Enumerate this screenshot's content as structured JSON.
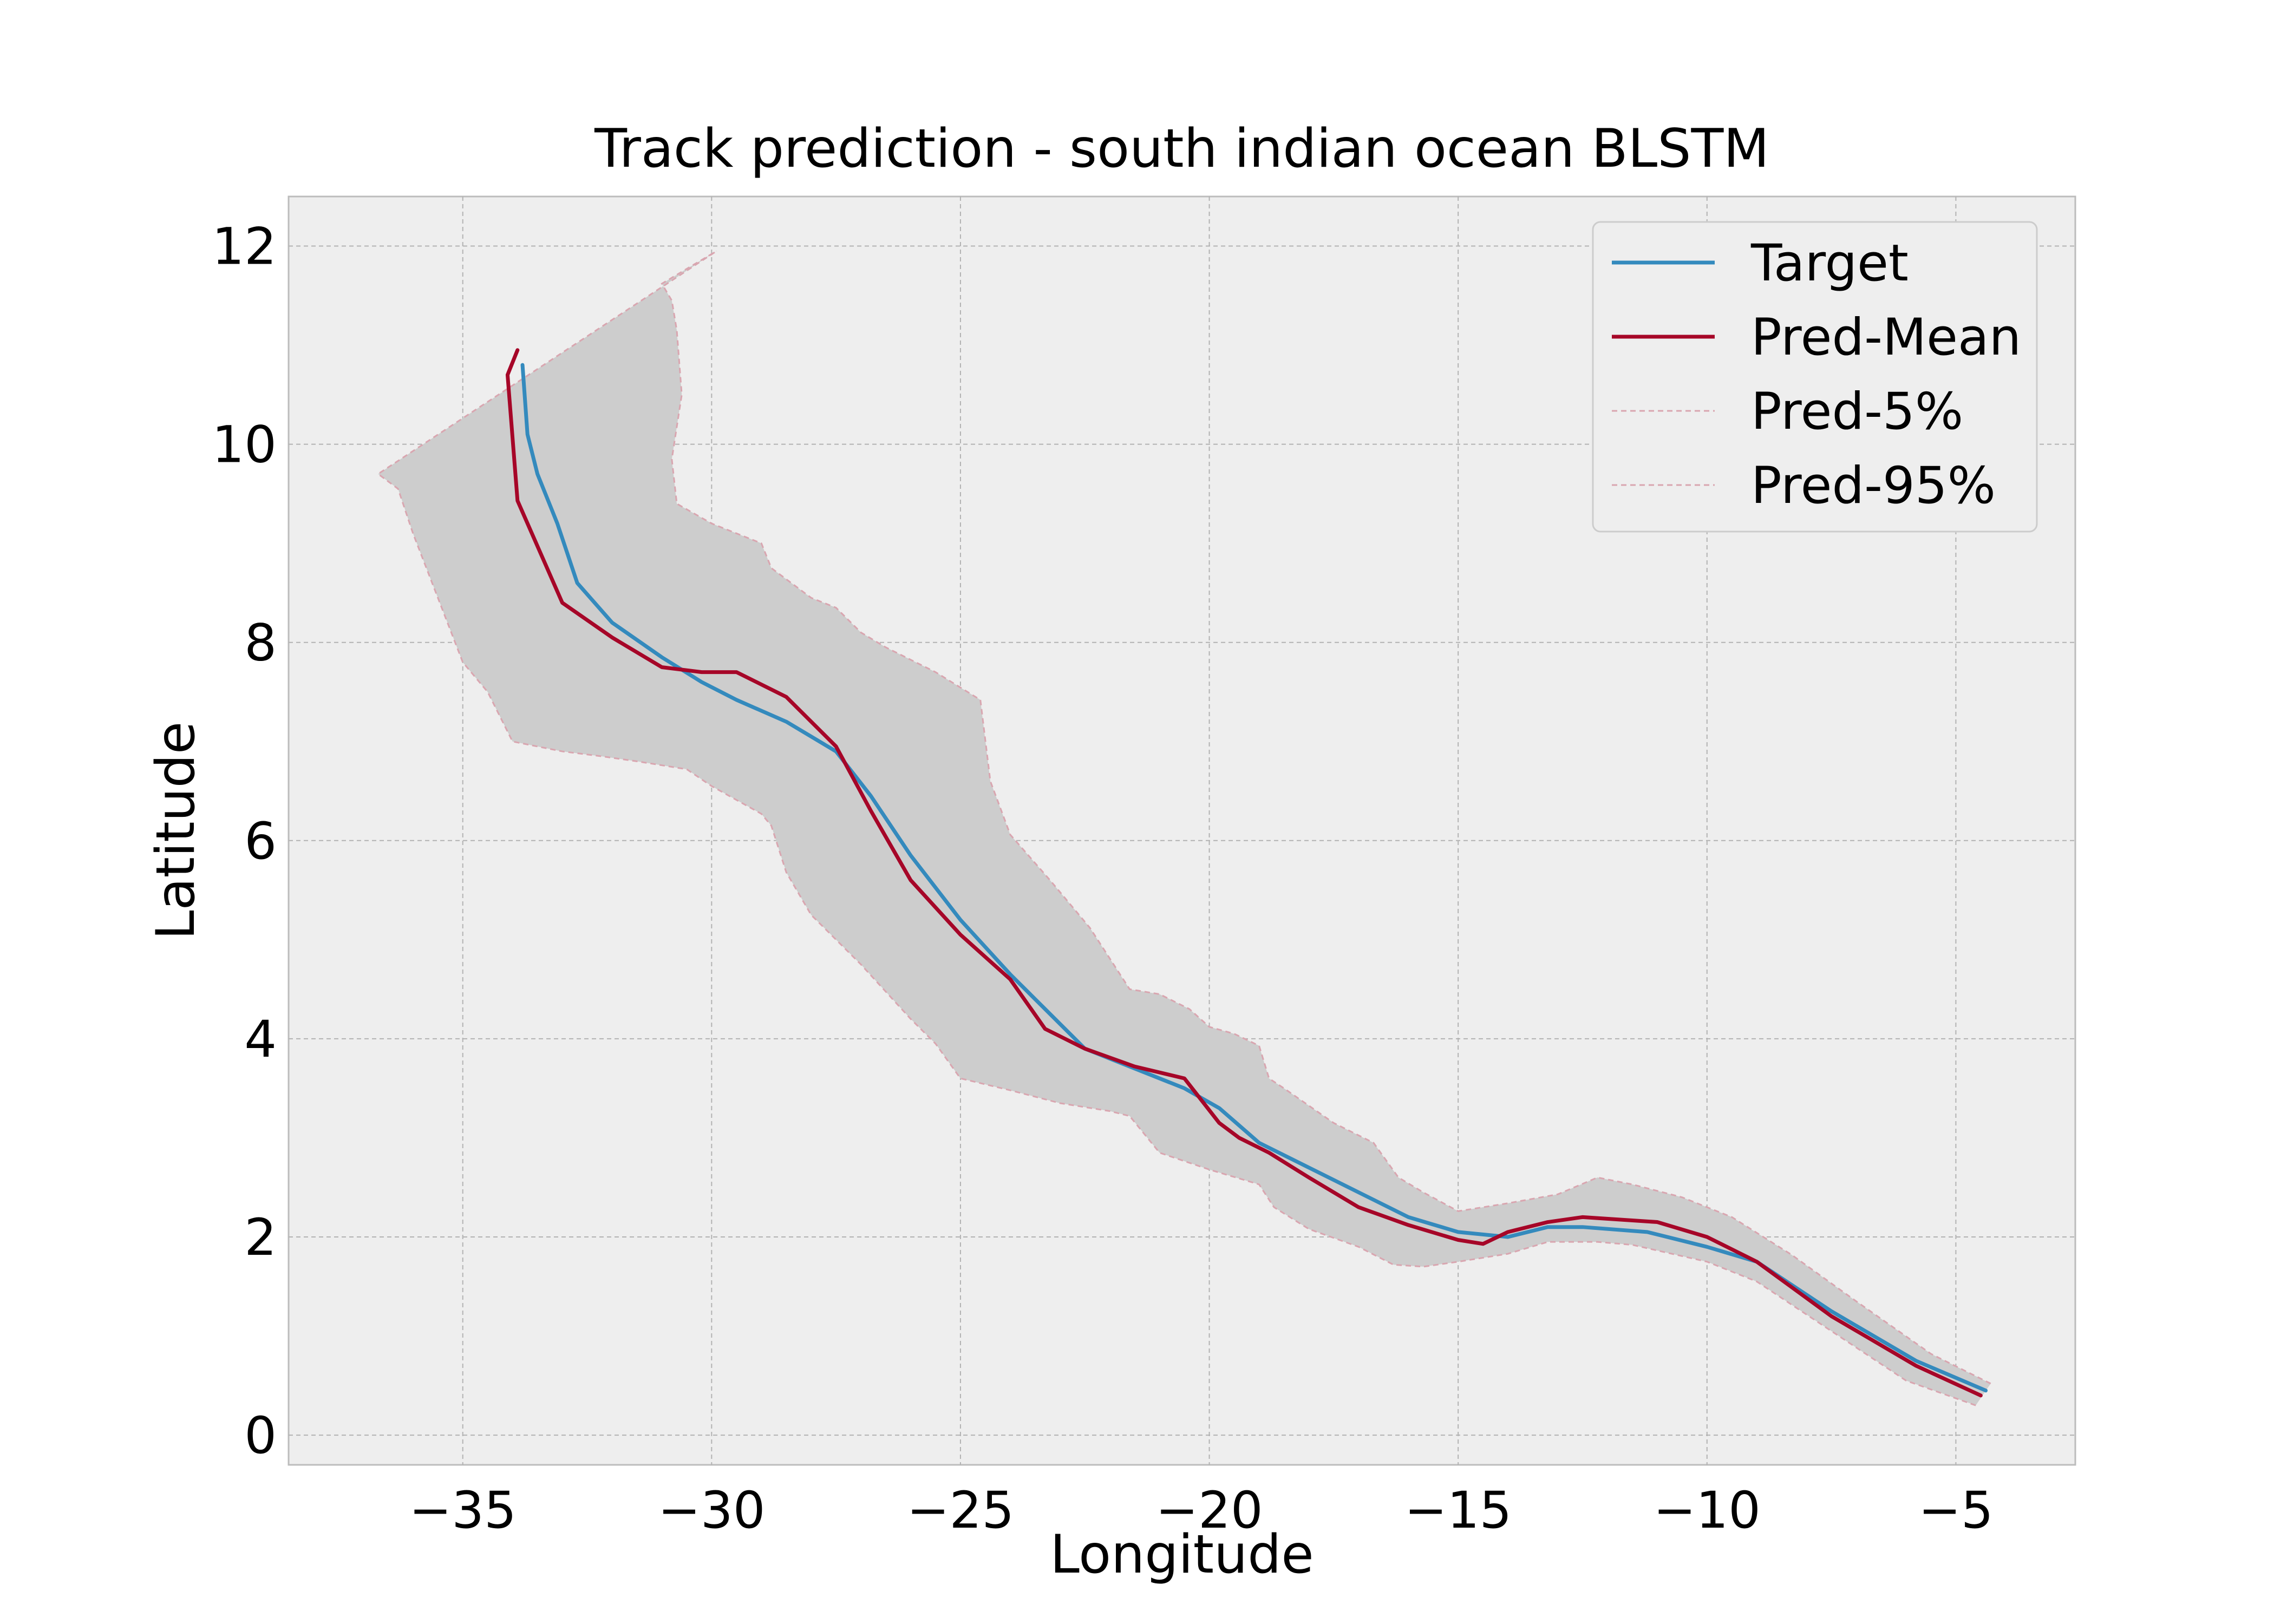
{
  "chart_data": {
    "type": "line",
    "title": "Track prediction - south indian ocean BLSTM",
    "xlabel": "Longitude",
    "ylabel": "Latitude",
    "xlim": [
      -38.5,
      -2.6
    ],
    "ylim": [
      -0.3,
      12.5
    ],
    "xticks": [
      -35,
      -30,
      -25,
      -20,
      -15,
      -10,
      -5
    ],
    "xtick_labels": [
      "−35",
      "−30",
      "−25",
      "−20",
      "−15",
      "−10",
      "−5"
    ],
    "yticks": [
      0,
      2,
      4,
      6,
      8,
      10,
      12
    ],
    "ytick_labels": [
      "0",
      "2",
      "4",
      "6",
      "8",
      "10",
      "12"
    ],
    "grid": true,
    "legend_position": "top-right",
    "series": [
      {
        "name": "Target",
        "color": "#348ABD",
        "style": "solid",
        "x": [
          -4.4,
          -5.8,
          -7.5,
          -9.0,
          -10.0,
          -11.2,
          -12.5,
          -13.2,
          -14.0,
          -15.0,
          -16.0,
          -17.0,
          -18.0,
          -19.0,
          -19.8,
          -20.5,
          -21.5,
          -22.5,
          -23.3,
          -24.0,
          -25.0,
          -26.0,
          -26.8,
          -27.5,
          -28.5,
          -29.5,
          -30.2,
          -31.0,
          -32.0,
          -32.7,
          -33.1,
          -33.5,
          -33.7,
          -33.8
        ],
        "y": [
          0.45,
          0.75,
          1.25,
          1.75,
          1.9,
          2.05,
          2.1,
          2.1,
          2.0,
          2.05,
          2.2,
          2.45,
          2.7,
          2.95,
          3.3,
          3.5,
          3.7,
          3.9,
          4.3,
          4.65,
          5.2,
          5.85,
          6.45,
          6.9,
          7.2,
          7.42,
          7.6,
          7.85,
          8.2,
          8.6,
          9.2,
          9.7,
          10.1,
          10.8
        ]
      },
      {
        "name": "Pred-Mean",
        "color": "#A60628",
        "style": "solid",
        "x": [
          -4.5,
          -5.8,
          -7.5,
          -9.0,
          -10.0,
          -11.0,
          -12.5,
          -13.2,
          -14.0,
          -14.5,
          -15.0,
          -16.0,
          -17.0,
          -18.0,
          -18.8,
          -19.4,
          -19.8,
          -20.5,
          -21.5,
          -22.5,
          -23.3,
          -24.0,
          -25.0,
          -26.0,
          -26.8,
          -27.5,
          -28.5,
          -29.5,
          -30.2,
          -31.0,
          -32.0,
          -33.0,
          -33.9,
          -34.1,
          -33.9
        ],
        "y": [
          0.4,
          0.7,
          1.2,
          1.75,
          2.0,
          2.15,
          2.2,
          2.15,
          2.05,
          1.93,
          1.97,
          2.12,
          2.3,
          2.6,
          2.85,
          3.0,
          3.15,
          3.6,
          3.72,
          3.9,
          4.1,
          4.6,
          5.05,
          5.6,
          6.3,
          6.95,
          7.45,
          7.7,
          7.7,
          7.75,
          8.05,
          8.4,
          9.43,
          10.7,
          10.95
        ]
      }
    ],
    "band": {
      "color": "#cdcdcd",
      "line_color": "#d9a6b0",
      "upper": {
        "name": "Pred-5%",
        "x": [
          -4.3,
          -5.5,
          -7.0,
          -8.3,
          -9.5,
          -10.5,
          -11.5,
          -12.2,
          -13.0,
          -14.0,
          -15.0,
          -15.7,
          -16.2,
          -16.7,
          -17.5,
          -18.5,
          -18.8,
          -19.0,
          -19.5,
          -20.0,
          -20.4,
          -21.0,
          -21.6,
          -22.4,
          -23.2,
          -24.0,
          -24.4,
          -24.6,
          -25.5,
          -26.5,
          -27.0,
          -27.5,
          -28.0,
          -28.4,
          -28.8,
          -29.0,
          -30.0,
          -30.7,
          -30.8,
          -30.6,
          -30.7,
          -30.8,
          -31.0
        ],
        "y": [
          0.52,
          0.82,
          1.35,
          1.82,
          2.2,
          2.4,
          2.53,
          2.6,
          2.43,
          2.34,
          2.26,
          2.45,
          2.6,
          2.95,
          3.15,
          3.5,
          3.6,
          3.93,
          4.05,
          4.12,
          4.3,
          4.45,
          4.5,
          5.12,
          5.6,
          6.06,
          6.6,
          7.42,
          7.7,
          7.95,
          8.1,
          8.35,
          8.45,
          8.6,
          8.75,
          9.0,
          9.2,
          9.4,
          9.85,
          10.5,
          11.15,
          11.45,
          11.62
        ]
      },
      "lower": {
        "name": "Pred-95%",
        "x": [
          -4.6,
          -6.0,
          -7.5,
          -9.0,
          -10.0,
          -11.5,
          -12.2,
          -13.2,
          -14.0,
          -15.0,
          -15.7,
          -16.3,
          -17.0,
          -18.0,
          -18.7,
          -19.0,
          -20.0,
          -21.0,
          -21.6,
          -22.0,
          -23.0,
          -24.0,
          -25.0,
          -25.5,
          -26.0,
          -27.0,
          -28.0,
          -28.5,
          -28.8,
          -29.0,
          -30.0,
          -30.5,
          -31.5,
          -32.2,
          -33.0,
          -34.0,
          -34.5,
          -35.0,
          -35.5,
          -36.0,
          -36.3,
          -36.7
        ],
        "y": [
          0.3,
          0.55,
          1.05,
          1.55,
          1.75,
          1.92,
          1.95,
          1.95,
          1.83,
          1.75,
          1.7,
          1.72,
          1.9,
          2.08,
          2.3,
          2.53,
          2.68,
          2.85,
          3.22,
          3.27,
          3.35,
          3.48,
          3.6,
          3.95,
          4.2,
          4.75,
          5.25,
          5.68,
          6.15,
          6.27,
          6.55,
          6.72,
          6.8,
          6.85,
          6.9,
          7.0,
          7.5,
          7.8,
          8.45,
          9.1,
          9.55,
          9.7
        ]
      },
      "apex": {
        "x": -29.9,
        "y": 11.95
      }
    }
  }
}
